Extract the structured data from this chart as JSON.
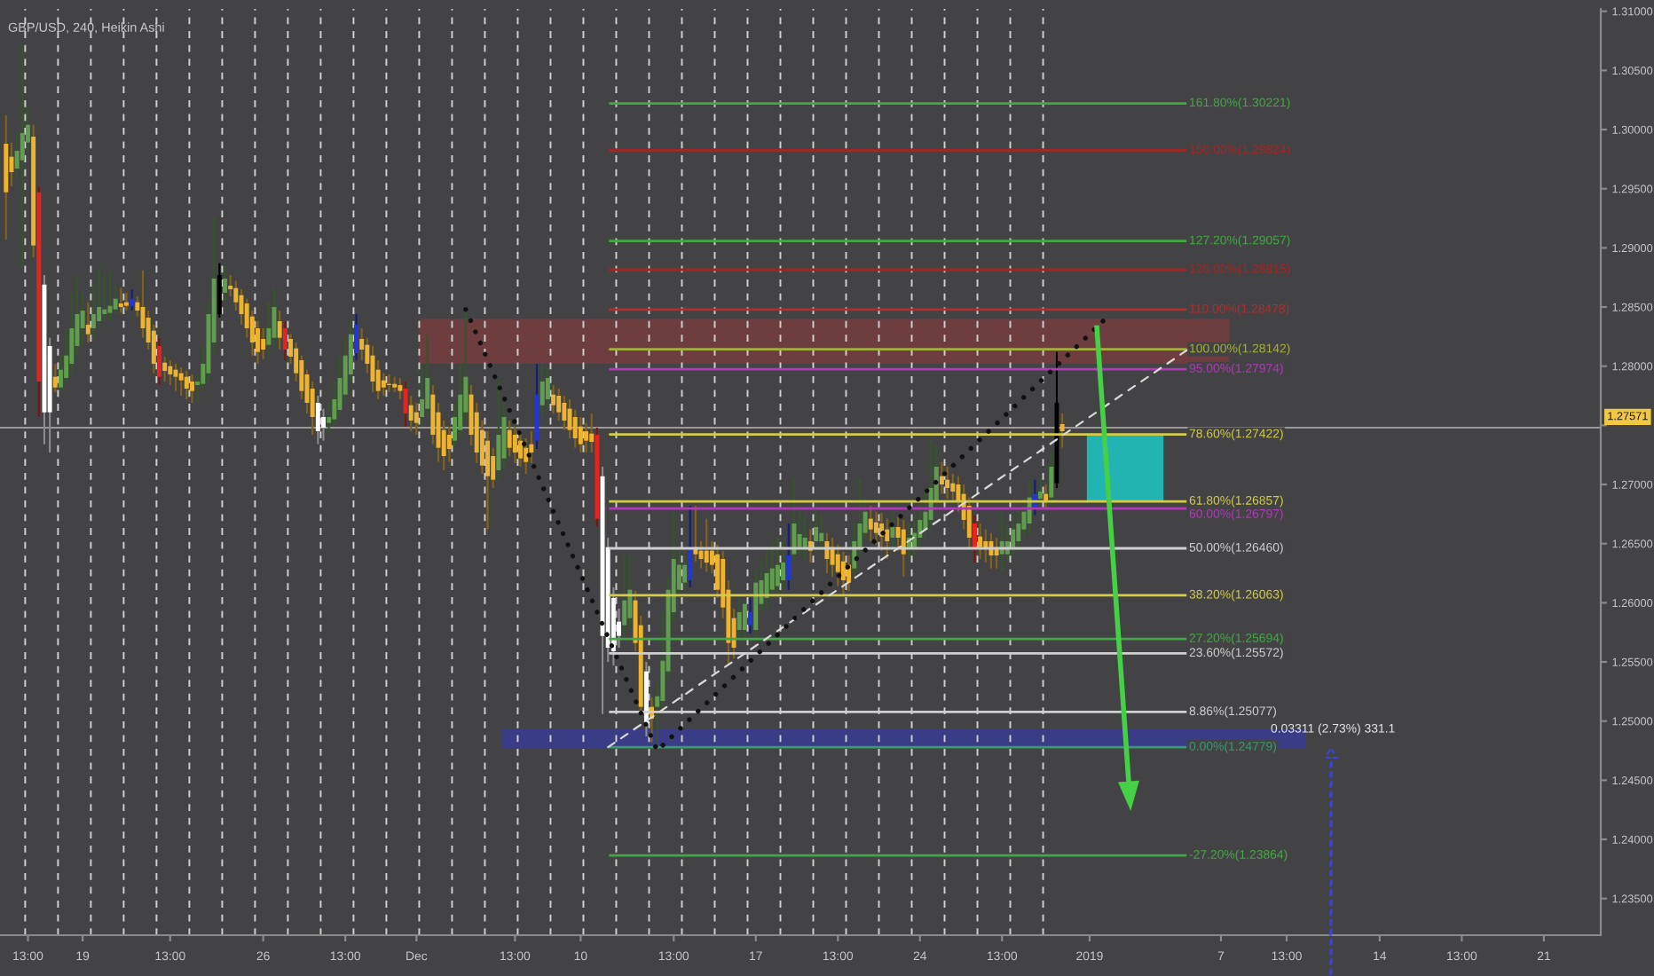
{
  "chart_data": {
    "type": "candlestick",
    "title": "GBP/USD, 240, Heikin Ashi",
    "categories": [
      null,
      null,
      null,
      null,
      "13:00",
      null,
      null,
      null,
      null,
      null,
      null,
      null,
      null,
      null,
      "19",
      null,
      null,
      null,
      null,
      null,
      null,
      null,
      null,
      null,
      null,
      null,
      null,
      null,
      null,
      null,
      "13:00",
      null,
      null,
      null,
      null,
      null,
      null,
      null,
      null,
      null,
      null,
      null,
      null,
      null,
      null,
      null,
      null,
      "26",
      null,
      null,
      null,
      null,
      null,
      null,
      null,
      null,
      null,
      null,
      null,
      null,
      null,
      null,
      "13:00",
      null,
      null,
      null,
      null,
      null,
      null,
      null,
      null,
      null,
      null,
      null,
      null,
      "Dec",
      null,
      null,
      null,
      null,
      null,
      null,
      null,
      null,
      null,
      null,
      null,
      null,
      null,
      null,
      null,
      null,
      null,
      "13:00",
      null,
      null,
      null,
      null,
      null,
      null,
      null,
      null,
      null,
      null,
      null,
      "10",
      null,
      null,
      null,
      null,
      null,
      null,
      null,
      null,
      null,
      null,
      null,
      null,
      null,
      null,
      null,
      null,
      "13:00",
      null,
      null,
      null,
      null,
      null,
      null,
      null,
      null,
      null,
      null,
      null,
      null,
      null,
      null,
      "17",
      null,
      null,
      null,
      null,
      null,
      null,
      null,
      null,
      null,
      null,
      null,
      null,
      null,
      null,
      "13:00",
      null,
      null,
      null,
      null,
      null,
      null,
      null,
      null,
      null,
      null,
      null,
      null,
      null,
      null,
      "24",
      null,
      null,
      null,
      null,
      null,
      null,
      null,
      null,
      null,
      null,
      null,
      null,
      null,
      null,
      "13:00",
      null,
      null,
      null,
      null,
      null,
      null,
      null,
      null,
      null,
      null,
      null,
      null,
      null,
      null,
      null,
      "2019",
      null,
      null,
      null,
      null,
      null,
      null,
      null,
      null,
      null,
      null,
      null,
      null,
      null,
      null,
      null,
      null,
      null,
      null,
      null,
      null,
      null,
      null,
      null,
      "7",
      null,
      null,
      null,
      null,
      null,
      null,
      null,
      null,
      null,
      null,
      null,
      "13:00",
      null,
      null,
      null,
      null,
      null,
      null,
      null,
      null,
      null,
      null,
      null,
      null,
      null,
      null,
      null,
      null,
      "14",
      null,
      null,
      null,
      null,
      null,
      null,
      null,
      null,
      null,
      null,
      null,
      null,
      null,
      null,
      "13:00",
      null,
      null,
      null,
      null,
      null,
      null,
      null,
      null,
      null,
      null,
      null,
      null,
      null,
      null,
      "21",
      null,
      null,
      null,
      null,
      null,
      null,
      null,
      null,
      null,
      null
    ],
    "ohlc": [
      [
        1.2988,
        1.3012,
        1.2907,
        1.2947
      ],
      [
        1.2977,
        1.2989,
        1.2952,
        1.2964
      ],
      [
        1.2967,
        1.2997,
        1.2959,
        1.2982
      ],
      [
        1.2974,
        1.3072,
        1.2884,
        1.2997
      ],
      [
        1.2989,
        1.3019,
        1.2982,
        1.3004
      ],
      [
        1.2994,
        1.3004,
        1.2892,
        1.2902
      ],
      [
        1.2947,
        1.2952,
        1.2757,
        1.2787
      ],
      [
        1.2869,
        1.2877,
        1.2734,
        1.2761
      ],
      [
        1.2817,
        1.2824,
        1.2727,
        1.2761
      ],
      [
        1.2791,
        1.2802,
        1.2778,
        1.2782
      ],
      [
        1.2782,
        1.2809,
        1.2778,
        1.2797
      ],
      [
        1.279,
        1.2832,
        1.2784,
        1.2809
      ],
      [
        1.2802,
        1.2862,
        1.2794,
        1.2832
      ],
      [
        1.2817,
        1.2877,
        1.2809,
        1.2844
      ],
      [
        1.2832,
        1.2862,
        1.2817,
        1.2847
      ],
      [
        1.2835,
        1.2854,
        1.282,
        1.2827
      ],
      [
        1.2832,
        1.2869,
        1.2823,
        1.2844
      ],
      [
        1.2838,
        1.2884,
        1.2832,
        1.285
      ],
      [
        1.2844,
        1.2877,
        1.2838,
        1.2848
      ],
      [
        1.2845,
        1.2881,
        1.2839,
        1.2851
      ],
      [
        1.2848,
        1.2869,
        1.2844,
        1.2857
      ],
      [
        1.2853,
        1.2866,
        1.2845,
        1.285
      ],
      [
        1.2854,
        1.2862,
        1.2847,
        1.2851
      ],
      [
        1.2851,
        1.2865,
        1.2847,
        1.2857
      ],
      [
        1.2854,
        1.2859,
        1.2842,
        1.2847
      ],
      [
        1.285,
        1.2881,
        1.2824,
        1.2832
      ],
      [
        1.2841,
        1.2847,
        1.2814,
        1.282
      ],
      [
        1.283,
        1.2835,
        1.2794,
        1.2802
      ],
      [
        1.2817,
        1.2824,
        1.2784,
        1.2791
      ],
      [
        1.2803,
        1.2808,
        1.2787,
        1.2796
      ],
      [
        1.28,
        1.2805,
        1.2784,
        1.2793
      ],
      [
        1.2797,
        1.2802,
        1.2779,
        1.2791
      ],
      [
        1.2794,
        1.2799,
        1.2775,
        1.2788
      ],
      [
        1.2791,
        1.2796,
        1.2772,
        1.2781
      ],
      [
        1.2787,
        1.2793,
        1.2769,
        1.2779
      ],
      [
        1.2784,
        1.2794,
        1.2769,
        1.2787
      ],
      [
        1.2785,
        1.2817,
        1.2779,
        1.2802
      ],
      [
        1.2794,
        1.2854,
        1.2787,
        1.2844
      ],
      [
        1.282,
        1.2926,
        1.2809,
        1.2874
      ],
      [
        1.2844,
        1.2887,
        1.2841,
        1.2877
      ],
      [
        1.2862,
        1.2887,
        1.2854,
        1.2874
      ],
      [
        1.2868,
        1.2877,
        1.2859,
        1.2865
      ],
      [
        1.2866,
        1.2872,
        1.2847,
        1.2854
      ],
      [
        1.286,
        1.2865,
        1.2835,
        1.2844
      ],
      [
        1.2853,
        1.2857,
        1.2824,
        1.2832
      ],
      [
        1.2842,
        1.2847,
        1.2809,
        1.282
      ],
      [
        1.2832,
        1.2838,
        1.2802,
        1.2812
      ],
      [
        1.2823,
        1.2832,
        1.2806,
        1.2814
      ],
      [
        1.2818,
        1.2854,
        1.2809,
        1.2832
      ],
      [
        1.2824,
        1.2866,
        1.2817,
        1.285
      ],
      [
        1.2838,
        1.2847,
        1.2814,
        1.2824
      ],
      [
        1.2832,
        1.2838,
        1.2805,
        1.2814
      ],
      [
        1.2823,
        1.2827,
        1.2802,
        1.2808
      ],
      [
        1.2815,
        1.282,
        1.2787,
        1.2794
      ],
      [
        1.2805,
        1.2809,
        1.2772,
        1.2779
      ],
      [
        1.2793,
        1.2797,
        1.276,
        1.2769
      ],
      [
        1.2781,
        1.2787,
        1.2742,
        1.2757
      ],
      [
        1.2769,
        1.2775,
        1.2734,
        1.2745
      ],
      [
        1.2757,
        1.2764,
        1.2737,
        1.2748
      ],
      [
        1.2752,
        1.2769,
        1.2742,
        1.2757
      ],
      [
        1.2755,
        1.2787,
        1.2749,
        1.2772
      ],
      [
        1.2763,
        1.2809,
        1.2757,
        1.279
      ],
      [
        1.2776,
        1.2824,
        1.2769,
        1.2809
      ],
      [
        1.2793,
        1.2839,
        1.2787,
        1.2827
      ],
      [
        1.2811,
        1.2844,
        1.2805,
        1.2835
      ],
      [
        1.2823,
        1.2832,
        1.2805,
        1.2814
      ],
      [
        1.2818,
        1.2824,
        1.2794,
        1.2802
      ],
      [
        1.2809,
        1.2817,
        1.2778,
        1.2787
      ],
      [
        1.2797,
        1.2805,
        1.2772,
        1.2779
      ],
      [
        1.2788,
        1.2794,
        1.2775,
        1.2782
      ],
      [
        1.2785,
        1.2793,
        1.2778,
        1.2784
      ],
      [
        1.2785,
        1.2791,
        1.2778,
        1.2782
      ],
      [
        1.2784,
        1.279,
        1.2772,
        1.2779
      ],
      [
        1.2781,
        1.2787,
        1.2749,
        1.276
      ],
      [
        1.2767,
        1.2775,
        1.2745,
        1.2754
      ],
      [
        1.2761,
        1.2769,
        1.2742,
        1.2752
      ],
      [
        1.2757,
        1.2802,
        1.2749,
        1.2772
      ],
      [
        1.2764,
        1.2827,
        1.2757,
        1.279
      ],
      [
        1.2776,
        1.2784,
        1.2734,
        1.2742
      ],
      [
        1.2761,
        1.2769,
        1.2719,
        1.2731
      ],
      [
        1.2746,
        1.2754,
        1.2712,
        1.2724
      ],
      [
        1.2742,
        1.2749,
        1.2719,
        1.273
      ],
      [
        1.2737,
        1.2769,
        1.273,
        1.2757
      ],
      [
        1.2746,
        1.2802,
        1.2739,
        1.2776
      ],
      [
        1.2761,
        1.2847,
        1.2754,
        1.2791
      ],
      [
        1.2776,
        1.2784,
        1.2733,
        1.2742
      ],
      [
        1.2761,
        1.2769,
        1.2718,
        1.2727
      ],
      [
        1.2746,
        1.2754,
        1.2709,
        1.2716
      ],
      [
        1.2737,
        1.2745,
        1.2662,
        1.2707
      ],
      [
        1.2724,
        1.2731,
        1.2697,
        1.2704
      ],
      [
        1.2712,
        1.2787,
        1.2703,
        1.2742
      ],
      [
        1.2722,
        1.2769,
        1.2715,
        1.2757
      ],
      [
        1.2746,
        1.2754,
        1.2724,
        1.2731
      ],
      [
        1.2742,
        1.2749,
        1.2718,
        1.2727
      ],
      [
        1.2737,
        1.2745,
        1.2715,
        1.2722
      ],
      [
        1.2731,
        1.2739,
        1.2709,
        1.2719
      ],
      [
        1.2734,
        1.2745,
        1.2718,
        1.2727
      ],
      [
        1.2737,
        1.2802,
        1.273,
        1.2776
      ],
      [
        1.2767,
        1.2802,
        1.2757,
        1.2787
      ],
      [
        1.2772,
        1.2799,
        1.2763,
        1.279
      ],
      [
        1.2776,
        1.2784,
        1.276,
        1.2767
      ],
      [
        1.2775,
        1.2781,
        1.2754,
        1.2761
      ],
      [
        1.2769,
        1.2775,
        1.2746,
        1.2754
      ],
      [
        1.2764,
        1.2772,
        1.2739,
        1.2746
      ],
      [
        1.2757,
        1.2763,
        1.2731,
        1.2739
      ],
      [
        1.2749,
        1.2757,
        1.2727,
        1.2734
      ],
      [
        1.2745,
        1.2752,
        1.2727,
        1.2737
      ],
      [
        1.2743,
        1.276,
        1.2727,
        1.2736
      ],
      [
        1.2742,
        1.2748,
        1.2664,
        1.2671
      ],
      [
        1.2707,
        1.2715,
        1.2506,
        1.2572
      ],
      [
        1.2647,
        1.2655,
        1.255,
        1.2562
      ],
      [
        1.2604,
        1.2613,
        1.2547,
        1.2559
      ],
      [
        1.2584,
        1.2595,
        1.2562,
        1.2572
      ],
      [
        1.2581,
        1.2641,
        1.2572,
        1.2602
      ],
      [
        1.2587,
        1.2641,
        1.2577,
        1.2611
      ],
      [
        1.2602,
        1.261,
        1.2559,
        1.2566
      ],
      [
        1.2581,
        1.2589,
        1.2505,
        1.2512
      ],
      [
        1.2542,
        1.255,
        1.2487,
        1.2497
      ],
      [
        1.2512,
        1.252,
        1.2482,
        1.2502
      ],
      [
        1.2512,
        1.2532,
        1.2476,
        1.2521
      ],
      [
        1.2517,
        1.2592,
        1.2509,
        1.2551
      ],
      [
        1.2542,
        1.2622,
        1.2535,
        1.2611
      ],
      [
        1.2592,
        1.2677,
        1.2584,
        1.2637
      ],
      [
        1.2611,
        1.2644,
        1.2604,
        1.2632
      ],
      [
        1.2617,
        1.2644,
        1.261,
        1.2632
      ],
      [
        1.2619,
        1.2682,
        1.2613,
        1.2647
      ],
      [
        1.2647,
        1.2682,
        1.2635,
        1.2641
      ],
      [
        1.2644,
        1.2652,
        1.2629,
        1.2637
      ],
      [
        1.2644,
        1.2671,
        1.2626,
        1.2634
      ],
      [
        1.2644,
        1.2652,
        1.2625,
        1.2632
      ],
      [
        1.2641,
        1.2649,
        1.2604,
        1.2611
      ],
      [
        1.2637,
        1.2644,
        1.2587,
        1.2596
      ],
      [
        1.2611,
        1.2619,
        1.2547,
        1.2566
      ],
      [
        1.2587,
        1.2595,
        1.2553,
        1.2562
      ],
      [
        1.2577,
        1.2607,
        1.2568,
        1.2592
      ],
      [
        1.2577,
        1.2602,
        1.2568,
        1.2599
      ],
      [
        1.2581,
        1.2604,
        1.2574,
        1.2592
      ],
      [
        1.2577,
        1.2629,
        1.2569,
        1.2617
      ],
      [
        1.2599,
        1.2637,
        1.2592,
        1.2619
      ],
      [
        1.2604,
        1.2644,
        1.2596,
        1.2625
      ],
      [
        1.2611,
        1.2652,
        1.2604,
        1.2629
      ],
      [
        1.2614,
        1.2655,
        1.2607,
        1.2632
      ],
      [
        1.2619,
        1.2652,
        1.261,
        1.2634
      ],
      [
        1.2619,
        1.2667,
        1.2611,
        1.264
      ],
      [
        1.2641,
        1.2704,
        1.2634,
        1.2667
      ],
      [
        1.2647,
        1.2682,
        1.264,
        1.2658
      ],
      [
        1.2646,
        1.2674,
        1.2637,
        1.2655
      ],
      [
        1.2652,
        1.2662,
        1.2634,
        1.2644
      ],
      [
        1.2652,
        1.2682,
        1.2644,
        1.2664
      ],
      [
        1.2652,
        1.2674,
        1.2644,
        1.2659
      ],
      [
        1.2652,
        1.2659,
        1.2625,
        1.2637
      ],
      [
        1.2647,
        1.2655,
        1.2622,
        1.2632
      ],
      [
        1.2641,
        1.2649,
        1.2614,
        1.2626
      ],
      [
        1.2635,
        1.2643,
        1.2607,
        1.2619
      ],
      [
        1.2632,
        1.264,
        1.261,
        1.2617
      ],
      [
        1.2629,
        1.2667,
        1.2622,
        1.2652
      ],
      [
        1.2647,
        1.2704,
        1.264,
        1.2667
      ],
      [
        1.2659,
        1.2689,
        1.2652,
        1.2677
      ],
      [
        1.2671,
        1.2682,
        1.2652,
        1.2662
      ],
      [
        1.2668,
        1.2677,
        1.2649,
        1.2659
      ],
      [
        1.2667,
        1.2676,
        1.2644,
        1.2656
      ],
      [
        1.2662,
        1.2671,
        1.2637,
        1.2652
      ],
      [
        1.2655,
        1.2679,
        1.2647,
        1.2664
      ],
      [
        1.2664,
        1.2673,
        1.2644,
        1.2655
      ],
      [
        1.2662,
        1.267,
        1.2622,
        1.2641
      ],
      [
        1.2647,
        1.2667,
        1.2637,
        1.2655
      ],
      [
        1.2647,
        1.2674,
        1.264,
        1.2659
      ],
      [
        1.2655,
        1.2682,
        1.2647,
        1.267
      ],
      [
        1.2662,
        1.2697,
        1.2655,
        1.2677
      ],
      [
        1.267,
        1.2739,
        1.2662,
        1.2697
      ],
      [
        1.2685,
        1.2734,
        1.2677,
        1.2715
      ],
      [
        1.2707,
        1.2719,
        1.2692,
        1.27
      ],
      [
        1.2704,
        1.2715,
        1.2688,
        1.2697
      ],
      [
        1.2701,
        1.2709,
        1.2685,
        1.2694
      ],
      [
        1.27,
        1.2707,
        1.2677,
        1.2685
      ],
      [
        1.2692,
        1.27,
        1.2662,
        1.267
      ],
      [
        1.2682,
        1.2689,
        1.2646,
        1.2655
      ],
      [
        1.2667,
        1.2674,
        1.2634,
        1.2646
      ],
      [
        1.2656,
        1.2667,
        1.2637,
        1.2647
      ],
      [
        1.2652,
        1.2662,
        1.2634,
        1.2646
      ],
      [
        1.2652,
        1.2659,
        1.2629,
        1.264
      ],
      [
        1.2647,
        1.2655,
        1.2629,
        1.264
      ],
      [
        1.2641,
        1.2677,
        1.2626,
        1.2652
      ],
      [
        1.2641,
        1.2667,
        1.2634,
        1.2652
      ],
      [
        1.2647,
        1.2674,
        1.264,
        1.2662
      ],
      [
        1.2652,
        1.2679,
        1.2644,
        1.2667
      ],
      [
        1.2662,
        1.2689,
        1.2655,
        1.2677
      ],
      [
        1.2667,
        1.2704,
        1.2659,
        1.2689
      ],
      [
        1.2679,
        1.2704,
        1.2674,
        1.2692
      ],
      [
        1.2688,
        1.2704,
        1.2682,
        1.2694
      ],
      [
        1.2692,
        1.27,
        1.2679,
        1.2686
      ],
      [
        1.2689,
        1.2727,
        1.2682,
        1.2715
      ],
      [
        1.2701,
        1.2812,
        1.2697,
        1.2769
      ],
      [
        1.2751,
        1.276,
        1.2731,
        1.2745
      ],
      null,
      null,
      null,
      null,
      null,
      null,
      null,
      null,
      null,
      null,
      null,
      null,
      null,
      null,
      null,
      null,
      null,
      null,
      null,
      null,
      null,
      null,
      null,
      null,
      null,
      null,
      null,
      null,
      null,
      null,
      null,
      null,
      null,
      null,
      null,
      null,
      null,
      null,
      null,
      null,
      null,
      null,
      null,
      null,
      null,
      null,
      null,
      null,
      null,
      null,
      null,
      null,
      null,
      null,
      null,
      null,
      null,
      null,
      null,
      null,
      null,
      null,
      null,
      null,
      null,
      null,
      null,
      null,
      null,
      null,
      null,
      null,
      null,
      null,
      null,
      null,
      null,
      null,
      null,
      null,
      null,
      null,
      null,
      null,
      null,
      null,
      null,
      null,
      null,
      null,
      null,
      null,
      null,
      null,
      null,
      null,
      null,
      null
    ],
    "colors": [
      "#efb42f",
      "#efb42f",
      "#5f9e4c",
      "#5f9e4c",
      "#5f9e4c",
      "#efb42f",
      "#e8231d",
      "#ffffff",
      "#ffffff",
      "#efb42f",
      "#5f9e4c",
      "#5f9e4c",
      "#5f9e4c",
      "#5f9e4c",
      "#5f9e4c",
      "#efb42f",
      "#5f9e4c",
      "#5f9e4c",
      "#5f9e4c",
      "#5f9e4c",
      "#5f9e4c",
      "#efb42f",
      "#efb42f",
      "#2137d9",
      "#efb42f",
      "#efb42f",
      "#efb42f",
      "#efb42f",
      "#e8231d",
      "#efb42f",
      "#efb42f",
      "#efb42f",
      "#efb42f",
      "#efb42f",
      "#efb42f",
      "#5f9e4c",
      "#5f9e4c",
      "#5f9e4c",
      "#5f9e4c",
      "#000000",
      "#5f9e4c",
      "#efb42f",
      "#efb42f",
      "#efb42f",
      "#efb42f",
      "#efb42f",
      "#efb42f",
      "#efb42f",
      "#5f9e4c",
      "#5f9e4c",
      "#efb42f",
      "#e8231d",
      "#efb42f",
      "#efb42f",
      "#efb42f",
      "#efb42f",
      "#efb42f",
      "#ffffff",
      "#ffffff",
      "#5f9e4c",
      "#5f9e4c",
      "#5f9e4c",
      "#5f9e4c",
      "#5f9e4c",
      "#2137d9",
      "#efb42f",
      "#efb42f",
      "#efb42f",
      "#efb42f",
      "#efb42f",
      "#efb42f",
      "#efb42f",
      "#efb42f",
      "#e8231d",
      "#efb42f",
      "#efb42f",
      "#5f9e4c",
      "#5f9e4c",
      "#efb42f",
      "#efb42f",
      "#efb42f",
      "#efb42f",
      "#5f9e4c",
      "#5f9e4c",
      "#5f9e4c",
      "#efb42f",
      "#efb42f",
      "#efb42f",
      "#efb42f",
      "#efb42f",
      "#5f9e4c",
      "#5f9e4c",
      "#efb42f",
      "#efb42f",
      "#efb42f",
      "#efb42f",
      "#efb42f",
      "#2137d9",
      "#5f9e4c",
      "#5f9e4c",
      "#efb42f",
      "#efb42f",
      "#efb42f",
      "#efb42f",
      "#efb42f",
      "#efb42f",
      "#efb42f",
      "#efb42f",
      "#e8231d",
      "#ffffff",
      "#ffffff",
      "#ffffff",
      "#ffffff",
      "#5f9e4c",
      "#5f9e4c",
      "#efb42f",
      "#efb42f",
      "#ffffff",
      "#efb42f",
      "#5f9e4c",
      "#5f9e4c",
      "#5f9e4c",
      "#5f9e4c",
      "#5f9e4c",
      "#5f9e4c",
      "#2137d9",
      "#efb42f",
      "#efb42f",
      "#efb42f",
      "#efb42f",
      "#efb42f",
      "#efb42f",
      "#efb42f",
      "#efb42f",
      "#5f9e4c",
      "#5f9e4c",
      "#2137d9",
      "#5f9e4c",
      "#5f9e4c",
      "#5f9e4c",
      "#5f9e4c",
      "#5f9e4c",
      "#5f9e4c",
      "#2137d9",
      "#5f9e4c",
      "#5f9e4c",
      "#5f9e4c",
      "#efb42f",
      "#5f9e4c",
      "#5f9e4c",
      "#efb42f",
      "#efb42f",
      "#efb42f",
      "#efb42f",
      "#efb42f",
      "#5f9e4c",
      "#5f9e4c",
      "#5f9e4c",
      "#efb42f",
      "#efb42f",
      "#efb42f",
      "#efb42f",
      "#5f9e4c",
      "#efb42f",
      "#efb42f",
      "#5f9e4c",
      "#5f9e4c",
      "#5f9e4c",
      "#5f9e4c",
      "#5f9e4c",
      "#5f9e4c",
      "#efb42f",
      "#efb42f",
      "#efb42f",
      "#efb42f",
      "#efb42f",
      "#efb42f",
      "#e8231d",
      "#efb42f",
      "#efb42f",
      "#efb42f",
      "#efb42f",
      "#5f9e4c",
      "#5f9e4c",
      "#5f9e4c",
      "#5f9e4c",
      "#5f9e4c",
      "#5f9e4c",
      "#2137d9",
      "#5f9e4c",
      "#efb42f",
      "#5f9e4c",
      "#000000",
      "#efb42f",
      null,
      null,
      null,
      null,
      null,
      null,
      null,
      null,
      null,
      null,
      null,
      null,
      null,
      null,
      null,
      null,
      null,
      null,
      null,
      null,
      null,
      null,
      null,
      null,
      null,
      null,
      null,
      null,
      null,
      null,
      null,
      null,
      null,
      null,
      null,
      null,
      null,
      null,
      null,
      null,
      null,
      null,
      null,
      null,
      null,
      null,
      null,
      null,
      null,
      null,
      null,
      null,
      null,
      null,
      null,
      null,
      null,
      null,
      null,
      null,
      null,
      null,
      null,
      null,
      null,
      null,
      null,
      null,
      null,
      null,
      null,
      null,
      null,
      null,
      null,
      null,
      null,
      null,
      null,
      null,
      null,
      null,
      null,
      null,
      null,
      null,
      null,
      null,
      null,
      null,
      null,
      null,
      null,
      null,
      null,
      null,
      null,
      null
    ],
    "series": [
      {
        "type": "line",
        "line_style": "dashed",
        "color": "#d9d9d9",
        "values": [
          null,
          null,
          null,
          null,
          null,
          null,
          null,
          null,
          null,
          null,
          null,
          null,
          null,
          null,
          null,
          null,
          null,
          null,
          null,
          null,
          null,
          null,
          null,
          null,
          null,
          null,
          null,
          null,
          null,
          null,
          null,
          null,
          null,
          null,
          null,
          null,
          null,
          null,
          null,
          null,
          null,
          null,
          null,
          null,
          null,
          null,
          null,
          null,
          null,
          null,
          null,
          null,
          null,
          null,
          null,
          null,
          null,
          null,
          null,
          null,
          null,
          null,
          null,
          null,
          null,
          null,
          null,
          null,
          null,
          null,
          null,
          null,
          null,
          null,
          null,
          null,
          null,
          null,
          null,
          null,
          null,
          null,
          null,
          null,
          null,
          null,
          null,
          null,
          null,
          null,
          null,
          null,
          null,
          null,
          null,
          null,
          null,
          null,
          null,
          null,
          null,
          null,
          null,
          null,
          null,
          null,
          null,
          null,
          null,
          null,
          1.24779,
          null,
          null,
          null,
          null,
          null,
          null,
          null,
          null,
          null,
          null,
          null,
          null,
          null,
          null,
          null,
          null,
          null,
          null,
          null,
          null,
          null,
          null,
          null,
          null,
          null,
          null,
          null,
          null,
          null,
          null,
          null,
          null,
          null,
          null,
          null,
          null,
          null,
          null,
          null,
          null,
          null,
          null,
          null,
          null,
          null,
          null,
          null,
          null,
          null,
          null,
          null,
          null,
          null,
          null,
          null,
          null,
          null,
          null,
          null,
          null,
          null,
          null,
          null,
          null,
          null,
          null,
          null,
          null,
          null,
          null,
          null,
          null,
          null,
          null,
          null,
          null,
          null,
          null,
          null,
          null,
          null,
          null,
          null,
          null,
          null,
          null,
          null,
          null,
          null,
          null,
          null,
          null,
          null,
          null,
          null,
          null,
          null,
          null,
          null,
          null,
          null,
          null,
          null,
          null,
          null,
          1.28142,
          null,
          null,
          null,
          null,
          null,
          null,
          null,
          null,
          null,
          null,
          null,
          null,
          null,
          null,
          null,
          null,
          null,
          null,
          null,
          null,
          null,
          null,
          null,
          null,
          null,
          null,
          null,
          null,
          null,
          null,
          null,
          null,
          null,
          null,
          null,
          null,
          null,
          null,
          null,
          null,
          null,
          null,
          null,
          null,
          null,
          null,
          null,
          null,
          null,
          null,
          null,
          null,
          null,
          null,
          null,
          null,
          null,
          null,
          null,
          null,
          null,
          null,
          null,
          null,
          null,
          null,
          null,
          null,
          null,
          null,
          null,
          null,
          null,
          null,
          null
        ]
      },
      {
        "type": "line",
        "line_style": "dotted",
        "color": "#111111",
        "values": [
          null,
          null,
          null,
          null,
          null,
          null,
          null,
          null,
          null,
          null,
          null,
          null,
          null,
          null,
          null,
          null,
          null,
          null,
          null,
          null,
          null,
          null,
          null,
          null,
          null,
          null,
          null,
          null,
          null,
          null,
          null,
          null,
          null,
          null,
          null,
          null,
          null,
          null,
          null,
          null,
          null,
          null,
          null,
          null,
          null,
          null,
          null,
          null,
          null,
          null,
          null,
          null,
          null,
          null,
          null,
          null,
          null,
          null,
          null,
          null,
          null,
          null,
          null,
          null,
          null,
          null,
          null,
          null,
          null,
          null,
          null,
          null,
          null,
          null,
          null,
          null,
          null,
          null,
          null,
          null,
          null,
          null,
          null,
          null,
          1.2848,
          null,
          null,
          null,
          null,
          null,
          null,
          null,
          null,
          null,
          null,
          null,
          null,
          null,
          null,
          null,
          null,
          null,
          null,
          null,
          null,
          null,
          null,
          null,
          null,
          null,
          null,
          null,
          null,
          null,
          null,
          null,
          null,
          null,
          null,
          1.2475,
          null,
          null,
          null,
          null,
          null,
          null,
          null,
          null,
          null,
          null,
          null,
          null,
          null,
          null,
          null,
          null,
          null,
          null,
          null,
          null,
          null,
          null,
          null,
          null,
          null,
          null,
          null,
          null,
          null,
          null,
          null,
          null,
          null,
          null,
          null,
          null,
          null,
          null,
          null,
          null,
          null,
          null,
          null,
          null,
          null,
          null,
          null,
          null,
          null,
          null,
          null,
          null,
          null,
          null,
          null,
          null,
          null,
          null,
          null,
          null,
          null,
          null,
          null,
          null,
          null,
          null,
          null,
          null,
          null,
          null,
          null,
          null,
          null,
          null,
          null,
          null,
          null,
          null,
          null,
          null,
          null,
          null,
          1.2845,
          null,
          null,
          null,
          null,
          null,
          null,
          null,
          null,
          null,
          null,
          null,
          null,
          null,
          null,
          null,
          null,
          null,
          null,
          null,
          null,
          null,
          null,
          null,
          null,
          null,
          null,
          null,
          null,
          null,
          null,
          null,
          null,
          null,
          null,
          null,
          null,
          null,
          null,
          null,
          null,
          null,
          null,
          null,
          null,
          null,
          null,
          null,
          null,
          null,
          null,
          null,
          null,
          null,
          null,
          null,
          null,
          null,
          null,
          null,
          null,
          null,
          null,
          null,
          null,
          null,
          null,
          null,
          null,
          null,
          null,
          null,
          null,
          null,
          null,
          null,
          null,
          null,
          null,
          null,
          null,
          null,
          null,
          null,
          null,
          null,
          null,
          null,
          null,
          null
        ]
      }
    ],
    "bands": [
      {
        "axis": "y",
        "from": 1.2802,
        "to": 1.284,
        "color": "#6e3d3f"
      },
      {
        "axis": "y",
        "from": 1.2477,
        "to": 1.2493,
        "color": "#3a3c86"
      },
      {
        "axis": "y",
        "from": 1.2686,
        "to": 1.2742,
        "color": "#22b3b3"
      }
    ],
    "ref_lines": [
      {
        "axis": "y",
        "value": 1.2748,
        "color": "#9a9a9a"
      },
      {
        "axis": "y",
        "value": 1.30221,
        "label": "161.80%(1.30221)",
        "color": "#43a843"
      },
      {
        "axis": "y",
        "value": 1.29824,
        "label": "150.00%(1.29824)",
        "color": "#a32626"
      },
      {
        "axis": "y",
        "value": 1.29057,
        "label": "127.20%(1.29057)",
        "color": "#43a843"
      },
      {
        "axis": "y",
        "value": 1.28815,
        "label": "120.00%(1.28815)",
        "color": "#a32626"
      },
      {
        "axis": "y",
        "value": 1.28478,
        "label": "110.00%(1.28478)",
        "color": "#b42c2c"
      },
      {
        "axis": "y",
        "value": 1.28142,
        "label": "100.00%(1.28142)",
        "color": "#a4b03c"
      },
      {
        "axis": "y",
        "value": 1.27974,
        "label": "95.00%(1.27974)",
        "color": "#b03ab8"
      },
      {
        "axis": "y",
        "value": 1.27422,
        "label": "78.60%(1.27422)",
        "color": "#d2cc48"
      },
      {
        "axis": "y",
        "value": 1.26857,
        "label": "61.80%(1.26857)",
        "color": "#d2cc48"
      },
      {
        "axis": "y",
        "value": 1.26797,
        "label": "60.00%(1.26797)",
        "color": "#b03ab8"
      },
      {
        "axis": "y",
        "value": 1.2646,
        "label": "50.00%(1.26460)",
        "color": "#cfcfcf"
      },
      {
        "axis": "y",
        "value": 1.26063,
        "label": "38.20%(1.26063)",
        "color": "#d2cc48"
      },
      {
        "axis": "y",
        "value": 1.25694,
        "label": "27.20%(1.25694)",
        "color": "#43a843"
      },
      {
        "axis": "y",
        "value": 1.25572,
        "label": "23.60%(1.25572)",
        "color": "#cfcfcf"
      },
      {
        "axis": "y",
        "value": 1.25077,
        "label": "8.86%(1.25077)",
        "color": "#cfcfcf"
      },
      {
        "axis": "y",
        "value": 1.24779,
        "label": "0.00%(1.24779)",
        "color": "#3a9a6e"
      },
      {
        "axis": "y",
        "value": 1.23864,
        "label": "-27.20%(1.23864)",
        "color": "#43a843"
      }
    ],
    "annotations": [
      "0.03311 (2.73%) 331.1",
      {
        "text": "1.27571",
        "y": 1.27571
      }
    ],
    "ylim": [
      1.2319,
      1.3102
    ],
    "yticks": [
      {
        "value": 1.235,
        "label": "1.23500"
      },
      {
        "value": 1.24,
        "label": "1.24000"
      },
      {
        "value": 1.245,
        "label": "1.24500"
      },
      {
        "value": 1.25,
        "label": "1.25000"
      },
      {
        "value": 1.255,
        "label": "1.25500"
      },
      {
        "value": 1.26,
        "label": "1.26000"
      },
      {
        "value": 1.265,
        "label": "1.26500"
      },
      {
        "value": 1.27,
        "label": "1.27000"
      },
      {
        "value": 1.275,
        "label": null
      },
      {
        "value": 1.28,
        "label": "1.28000"
      },
      {
        "value": 1.285,
        "label": "1.28500"
      },
      {
        "value": 1.29,
        "label": "1.29000"
      },
      {
        "value": 1.295,
        "label": "1.29500"
      },
      {
        "value": 1.3,
        "label": "1.30000"
      },
      {
        "value": 1.305,
        "label": "1.30500"
      },
      {
        "value": 1.31,
        "label": "1.31000"
      }
    ]
  }
}
